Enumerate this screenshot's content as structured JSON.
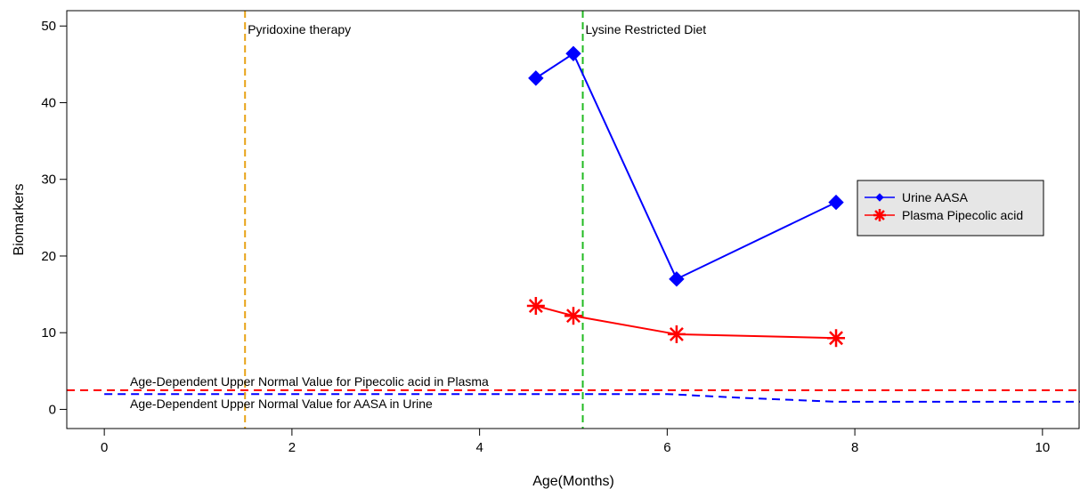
{
  "chart_data": {
    "type": "line",
    "title": "",
    "xlabel": "Age(Months)",
    "ylabel": "Biomarkers",
    "xlim": [
      -0.4,
      10.4
    ],
    "ylim": [
      -2.5,
      52
    ],
    "x_ticks": [
      0,
      2,
      4,
      6,
      8,
      10
    ],
    "y_ticks": [
      0,
      10,
      20,
      30,
      40,
      50
    ],
    "grid": false,
    "legend_position": "right",
    "series": [
      {
        "name": "Urine AASA",
        "color": "#0000ff",
        "marker": "diamond",
        "x": [
          4.6,
          5.0,
          6.1,
          7.8
        ],
        "y": [
          43.2,
          46.4,
          17.0,
          27.0
        ]
      },
      {
        "name": "Plasma Pipecolic acid",
        "color": "#ff0000",
        "marker": "asterisk",
        "x": [
          4.6,
          5.0,
          6.1,
          7.8
        ],
        "y": [
          13.5,
          12.2,
          9.8,
          9.3
        ]
      }
    ],
    "reference_lines": [
      {
        "label": "Age-Dependent Upper Normal Value for Pipecolic acid in Plasma",
        "color": "#ff0000",
        "style": "dashed",
        "x": [
          -0.4,
          10.4
        ],
        "y": [
          2.5,
          2.5
        ]
      },
      {
        "label": "Age-Dependent Upper Normal Value for AASA in Urine",
        "color": "#0000ff",
        "style": "dashed",
        "x": [
          0,
          6,
          6.8,
          7.8,
          10.4
        ],
        "y": [
          2.0,
          2.0,
          1.5,
          1.0,
          1.0
        ]
      }
    ],
    "vertical_lines": [
      {
        "label": "Pyridoxine therapy",
        "x": 1.5,
        "color": "#e8a317",
        "style": "dashed"
      },
      {
        "label": "Lysine Restricted Diet",
        "x": 5.1,
        "color": "#22bb22",
        "style": "dashed"
      }
    ]
  }
}
